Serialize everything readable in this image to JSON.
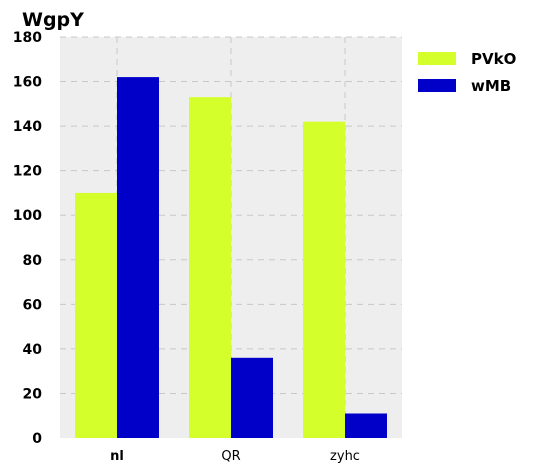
{
  "chart_data": {
    "type": "bar",
    "title": "WgpY",
    "categories": [
      "nl",
      "QR",
      "zyhc"
    ],
    "series": [
      {
        "name": "PVkO",
        "color": "#d4ff2a",
        "values": [
          110,
          153,
          142
        ]
      },
      {
        "name": "wMB",
        "color": "#0000c8",
        "values": [
          162,
          36,
          11
        ]
      }
    ],
    "ylim": [
      0,
      180
    ],
    "yticks": [
      0,
      20,
      40,
      60,
      80,
      100,
      120,
      140,
      160,
      180
    ],
    "grid": true,
    "legend_position": "right",
    "plot_background": "#eeeeee"
  }
}
